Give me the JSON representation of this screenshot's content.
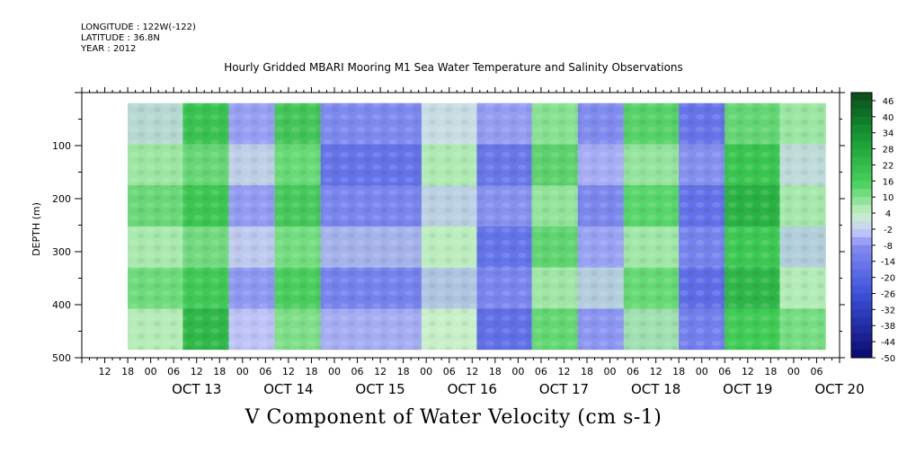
{
  "header": {
    "longitude": "LONGITUDE : 122W(-122)",
    "latitude": "LATITUDE : 36.8N",
    "year": "YEAR : 2012",
    "title": "Hourly Gridded MBARI Mooring M1 Sea Water Temperature and Salinity Observations"
  },
  "chart_data": {
    "type": "heatmap",
    "title": "Hourly Gridded MBARI Mooring M1 Sea Water Temperature and Salinity Observations",
    "xlabel": "V Component of Water Velocity (cm s-1)",
    "ylabel": "DEPTH (m)",
    "x_range": [
      "OCT 12 06:00",
      "OCT 20 12:00"
    ],
    "data_x_range": [
      "OCT 12 18:00",
      "OCT 20 08:00"
    ],
    "ylim": [
      500,
      0
    ],
    "data_depth_range": [
      20,
      485
    ],
    "y_ticks": [
      100,
      200,
      300,
      400,
      500
    ],
    "x_hour_ticks": [
      "12",
      "18",
      "00",
      "06",
      "12",
      "18",
      "00",
      "06",
      "12",
      "18",
      "00",
      "06",
      "12",
      "18",
      "00",
      "06",
      "12",
      "18",
      "00",
      "06",
      "12",
      "18",
      "00",
      "06",
      "12",
      "18",
      "00",
      "06",
      "12",
      "18",
      "00",
      "06"
    ],
    "x_day_labels": [
      "OCT 13",
      "OCT 14",
      "OCT 15",
      "OCT 16",
      "OCT 17",
      "OCT 18",
      "OCT 19",
      "OCT 20"
    ],
    "colorbar": {
      "labels": [
        "46",
        "40",
        "34",
        "28",
        "22",
        "16",
        "10",
        "4",
        "-2",
        "-8",
        "-14",
        "-20",
        "-26",
        "-32",
        "-38",
        "-44",
        "-50"
      ],
      "min": -50,
      "max": 50,
      "colors": {
        "high": "#0a4a1a",
        "mid_high": "#2ec24a",
        "near_zero": "#c8f0c8",
        "mid_low": "#7f8ff0",
        "low": "#0a0a6e"
      }
    },
    "bands": [
      {
        "day_start": 0.0,
        "day_end": 0.6,
        "value": 8
      },
      {
        "day_start": 0.6,
        "day_end": 1.1,
        "value": 18
      },
      {
        "day_start": 1.1,
        "day_end": 1.6,
        "value": -4
      },
      {
        "day_start": 1.6,
        "day_end": 2.1,
        "value": 14
      },
      {
        "day_start": 2.1,
        "day_end": 3.2,
        "value": -10
      },
      {
        "day_start": 3.2,
        "day_end": 3.8,
        "value": 4
      },
      {
        "day_start": 3.8,
        "day_end": 4.4,
        "value": -12
      },
      {
        "day_start": 4.4,
        "day_end": 4.9,
        "value": 10
      },
      {
        "day_start": 4.9,
        "day_end": 5.4,
        "value": -6
      },
      {
        "day_start": 5.4,
        "day_end": 6.0,
        "value": 12
      },
      {
        "day_start": 6.0,
        "day_end": 6.5,
        "value": -14
      },
      {
        "day_start": 6.5,
        "day_end": 7.1,
        "value": 20
      },
      {
        "day_start": 7.1,
        "day_end": 7.6,
        "value": 6
      }
    ]
  }
}
